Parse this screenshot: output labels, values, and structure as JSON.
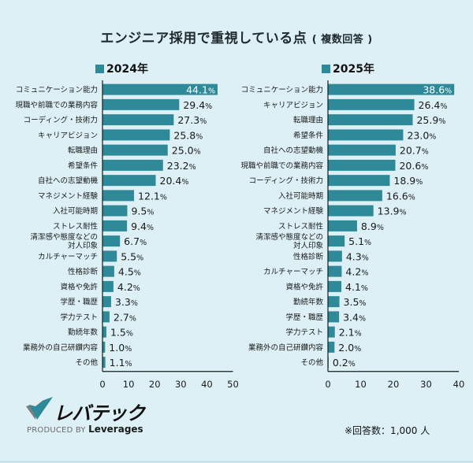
{
  "title": "エンジニア採用で重視している点",
  "subtitle": "( 複数回答 )",
  "note": "※回答数：1,000 人",
  "logo": {
    "name": "レバテック",
    "produced_by": "PRODUCED BY",
    "brand": "Leverages"
  },
  "colors": {
    "bar": "#2e8a99",
    "background": "#dcf0f6",
    "axis": "#1a1a1a",
    "highlight_label": "#ffffff"
  },
  "chart_data": [
    {
      "type": "bar",
      "orientation": "horizontal",
      "title": "2024年",
      "legend": "2024年",
      "xlabel": "",
      "ylabel": "",
      "xlim": [
        0,
        50
      ],
      "xticks": [
        0,
        10,
        20,
        30,
        40,
        50
      ],
      "value_suffix": "%",
      "categories": [
        "コミュニケーション能力",
        "現職や前職での業務内容",
        "コーディング・技術力",
        "キャリアビジョン",
        "転職理由",
        "希望条件",
        "自社への志望動機",
        "マネジメント経験",
        "入社可能時期",
        "ストレス耐性",
        "清潔感や態度などの\n対人印象",
        "カルチャーマッチ",
        "性格診断",
        "資格や免許",
        "学歴・職歴",
        "学力テスト",
        "勤続年数",
        "業務外の自己研鑽内容",
        "その他"
      ],
      "values": [
        44.1,
        29.4,
        27.3,
        25.8,
        25.0,
        23.2,
        20.4,
        12.1,
        9.5,
        9.4,
        6.7,
        5.5,
        4.5,
        4.2,
        3.3,
        2.7,
        1.5,
        1.0,
        1.1
      ],
      "labels": [
        "44.1",
        "29.4",
        "27.3",
        "25.8",
        "25.0",
        "23.2",
        "20.4",
        "12.1",
        "9.5",
        "9.4",
        "6.7",
        "5.5",
        "4.5",
        "4.2",
        "3.3",
        "2.7",
        "1.5",
        "1.0",
        "1.1"
      ]
    },
    {
      "type": "bar",
      "orientation": "horizontal",
      "title": "2025年",
      "legend": "2025年",
      "xlabel": "",
      "ylabel": "",
      "xlim": [
        0,
        40
      ],
      "xticks": [
        0,
        10,
        20,
        30,
        40
      ],
      "value_suffix": "%",
      "categories": [
        "コミュニケーション能力",
        "キャリアビジョン",
        "転職理由",
        "希望条件",
        "自社への志望動機",
        "現職や前職での業務内容",
        "コーディング・技術力",
        "入社可能時期",
        "マネジメント経験",
        "ストレス耐性",
        "清潔感や態度などの\n対人印象",
        "性格診断",
        "カルチャーマッチ",
        "資格や免許",
        "勤続年数",
        "学歴・職歴",
        "学力テスト",
        "業務外の自己研鑽内容",
        "その他"
      ],
      "values": [
        38.6,
        26.4,
        25.9,
        23.0,
        20.7,
        20.6,
        18.9,
        16.6,
        13.9,
        8.9,
        5.1,
        4.3,
        4.2,
        4.1,
        3.5,
        3.4,
        2.1,
        2.0,
        0.2
      ],
      "labels": [
        "38.6",
        "26.4",
        "25.9",
        "23.0",
        "20.7",
        "20.6",
        "18.9",
        "16.6",
        "13.9",
        "8.9",
        "5.1",
        "4.3",
        "4.2",
        "4.1",
        "3.5",
        "3.4",
        "2.1",
        "2.0",
        "0.2"
      ]
    }
  ]
}
